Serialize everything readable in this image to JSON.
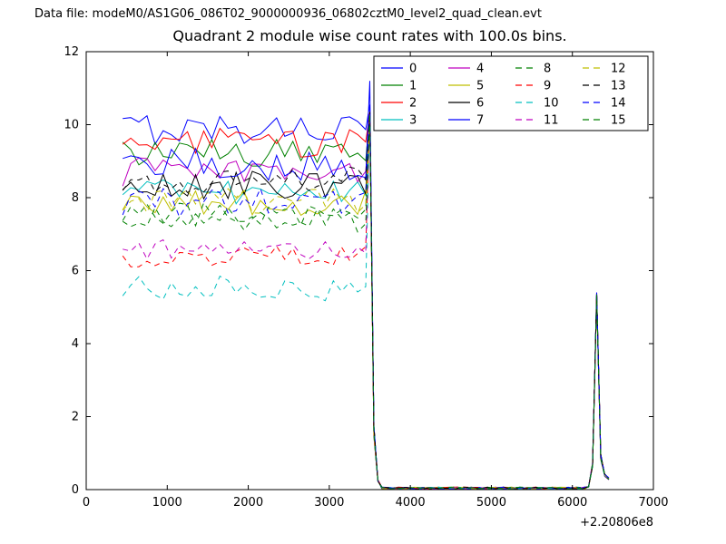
{
  "header": {
    "data_file_label": "Data file: modeM0/AS1G06_086T02_9000000936_06802cztM0_level2_quad_clean.evt"
  },
  "chart_data": {
    "type": "line",
    "title": "Quadrant 2 module wise count rates with 100.0s bins.",
    "xlabel": "",
    "ylabel": "",
    "xlim": [
      0,
      7000
    ],
    "ylim": [
      0,
      12
    ],
    "xticks": [
      0,
      1000,
      2000,
      3000,
      4000,
      5000,
      6000,
      7000
    ],
    "yticks": [
      0,
      2,
      4,
      6,
      8,
      10,
      12
    ],
    "x_offset_label": "+2.20806e8",
    "bin_seconds": 100.0,
    "grid": false,
    "legend": {
      "position": "upper center",
      "columns": 4,
      "order": "column-major"
    },
    "profile": {
      "plateau": {
        "start": 450,
        "end": 3450,
        "step": 100
      },
      "spike1": {
        "x": 3500,
        "decay": [
          [
            3550,
            1.6
          ],
          [
            3600,
            0.25
          ]
        ]
      },
      "quiet": {
        "start": 3650,
        "end": 6150,
        "step": 100,
        "level": 0.04,
        "jitter": 0.03
      },
      "spike2": {
        "rise": [
          [
            6200,
            0.08
          ],
          [
            6250,
            0.7
          ]
        ],
        "x": 6300,
        "fall": [
          [
            6350,
            0.9
          ],
          [
            6400,
            0.4
          ],
          [
            6450,
            0.3
          ]
        ]
      }
    },
    "series": [
      {
        "name": "0",
        "color": "#0000ff",
        "style": "solid",
        "base": 9.9,
        "noise": 0.45,
        "spike1_peak": 10.55,
        "spike2_peak": 5.4
      },
      {
        "name": "1",
        "color": "#008000",
        "style": "solid",
        "base": 9.2,
        "noise": 0.4,
        "spike1_peak": 10.3,
        "spike2_peak": 5.35
      },
      {
        "name": "2",
        "color": "#ff0000",
        "style": "solid",
        "base": 9.5,
        "noise": 0.4,
        "spike1_peak": 10.35,
        "spike2_peak": 5.3
      },
      {
        "name": "3",
        "color": "#00bfbf",
        "style": "solid",
        "base": 8.15,
        "noise": 0.35,
        "spike1_peak": 10.2,
        "spike2_peak": 5.35
      },
      {
        "name": "4",
        "color": "#bf00bf",
        "style": "solid",
        "base": 8.7,
        "noise": 0.4,
        "spike1_peak": 10.3,
        "spike2_peak": 5.4
      },
      {
        "name": "5",
        "color": "#bfbf00",
        "style": "solid",
        "base": 7.85,
        "noise": 0.35,
        "spike1_peak": 10.2,
        "spike2_peak": 5.3
      },
      {
        "name": "6",
        "color": "#000000",
        "style": "solid",
        "base": 8.35,
        "noise": 0.4,
        "spike1_peak": 10.3,
        "spike2_peak": 5.35
      },
      {
        "name": "7",
        "color": "#0000ff",
        "style": "solid",
        "base": 8.9,
        "noise": 0.45,
        "spike1_peak": 11.2,
        "spike2_peak": 5.4
      },
      {
        "name": "8",
        "color": "#008000",
        "style": "dashed",
        "base": 7.55,
        "noise": 0.35,
        "spike1_peak": 10.25,
        "spike2_peak": 5.3
      },
      {
        "name": "9",
        "color": "#ff0000",
        "style": "dashed",
        "base": 6.4,
        "noise": 0.3,
        "spike1_peak": 10.2,
        "spike2_peak": 5.35
      },
      {
        "name": "10",
        "color": "#00bfbf",
        "style": "dashed",
        "base": 5.5,
        "noise": 0.35,
        "spike1_peak": 10.2,
        "spike2_peak": 5.3
      },
      {
        "name": "11",
        "color": "#bf00bf",
        "style": "dashed",
        "base": 6.6,
        "noise": 0.3,
        "spike1_peak": 10.25,
        "spike2_peak": 5.35
      },
      {
        "name": "12",
        "color": "#bfbf00",
        "style": "dashed",
        "base": 7.9,
        "noise": 0.35,
        "spike1_peak": 10.2,
        "spike2_peak": 5.3
      },
      {
        "name": "13",
        "color": "#000000",
        "style": "dashed",
        "base": 8.5,
        "noise": 0.4,
        "spike1_peak": 10.35,
        "spike2_peak": 5.35
      },
      {
        "name": "14",
        "color": "#0000ff",
        "style": "dashed",
        "base": 7.85,
        "noise": 0.4,
        "spike1_peak": 10.3,
        "spike2_peak": 5.4
      },
      {
        "name": "15",
        "color": "#008000",
        "style": "dashed",
        "base": 7.4,
        "noise": 0.35,
        "spike1_peak": 10.3,
        "spike2_peak": 5.35
      }
    ]
  }
}
